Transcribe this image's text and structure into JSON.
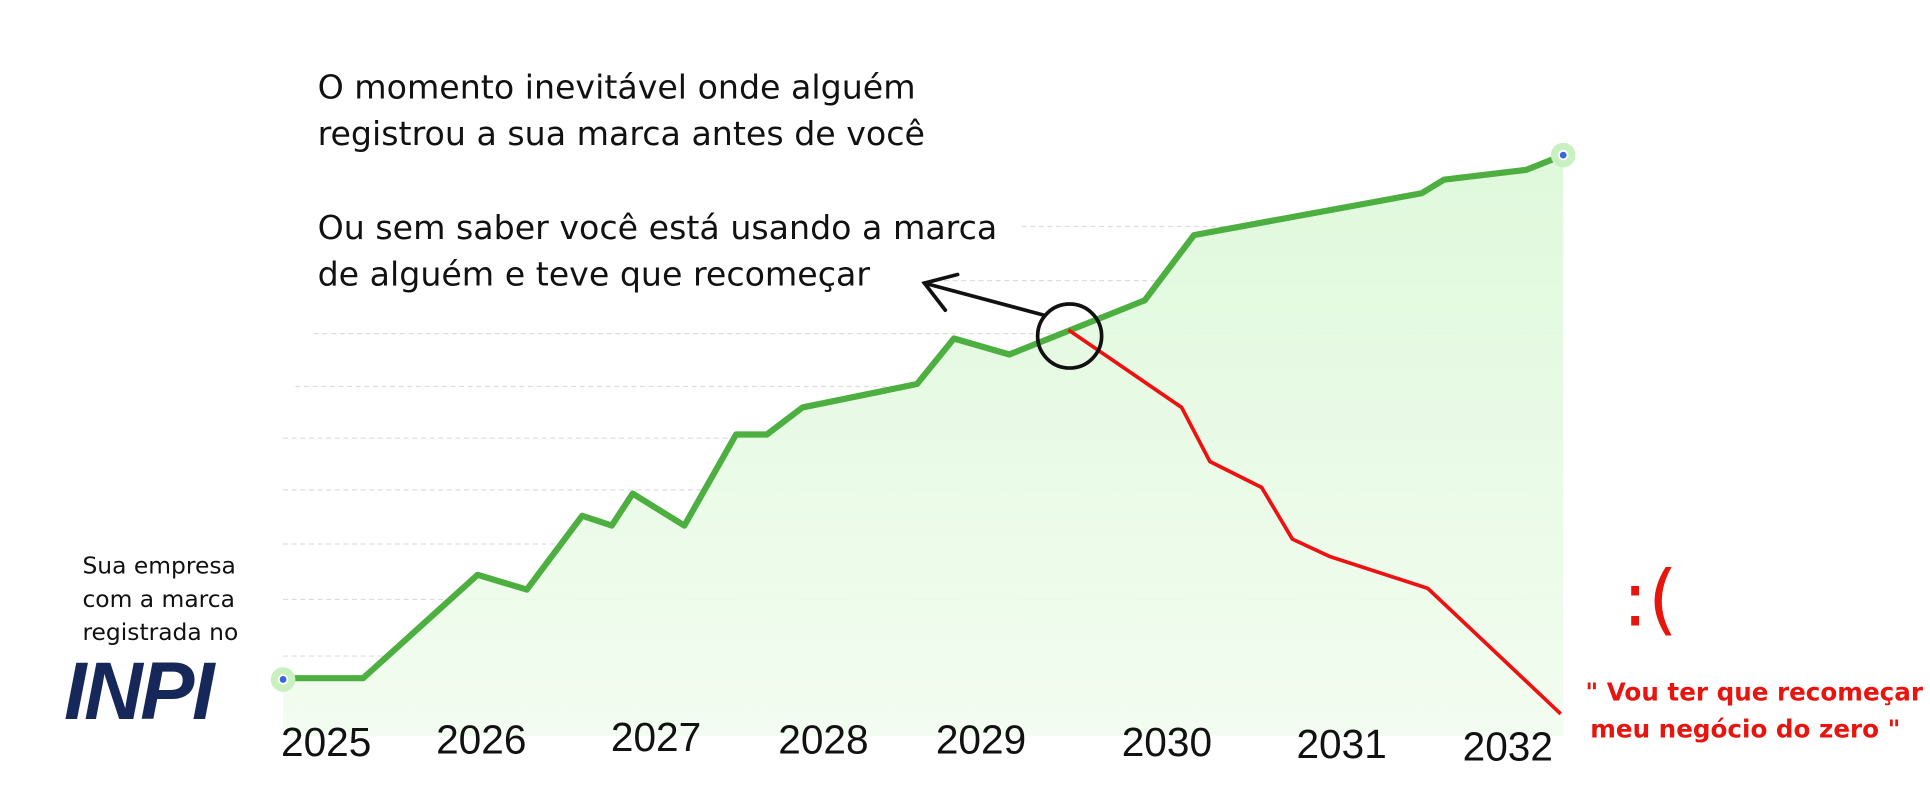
{
  "annotation": {
    "lines": [
      "O momento inevitável onde alguém",
      "registrou a sua marca antes de você"
    ],
    "lines_2": [
      "Ou sem saber você está usando a marca",
      "de alguém e teve que recomeçar"
    ]
  },
  "years": [
    "2025",
    "2026",
    "2027",
    "2028",
    "2029",
    "2030",
    "2031",
    "2032"
  ],
  "company_label": [
    "Sua empresa",
    "com a marca",
    "registrada no"
  ],
  "logo": "INPI",
  "emoticon": ":(",
  "quote": [
    "\" Vou ter que recomeçar",
    "meu negócio do zero \""
  ]
}
